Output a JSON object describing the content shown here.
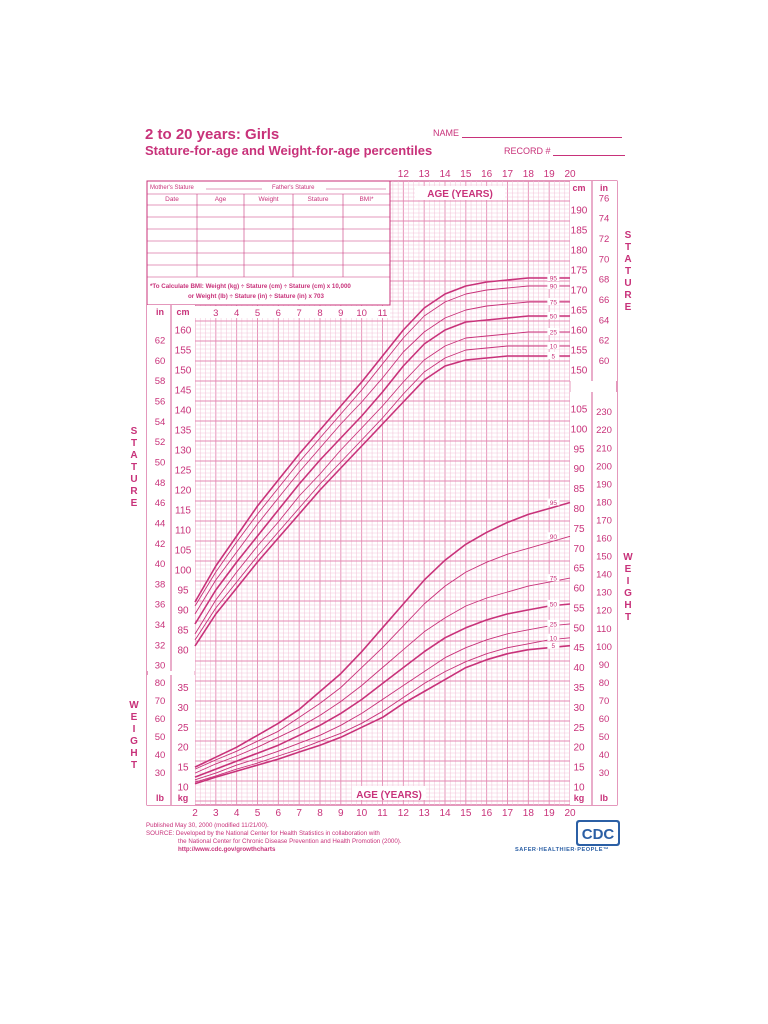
{
  "header": {
    "title": "2 to 20 years: Girls",
    "subtitle": "Stature-for-age and Weight-for-age percentiles",
    "name_label": "NAME",
    "record_label": "RECORD #"
  },
  "record_table": {
    "mother_label": "Mother's Stature",
    "father_label": "Father's Stature",
    "columns": [
      "Date",
      "Age",
      "Weight",
      "Stature",
      "BMI*"
    ],
    "rows": 6,
    "bmi_note_1": "*To Calculate BMI: Weight (kg) ÷ Stature (cm) ÷ Stature (cm) x 10,000",
    "bmi_note_2": "or Weight (lb) ÷ Stature (in) ÷ Stature (in) x 703"
  },
  "footer": {
    "published": "Published May 30, 2000 (modified 11/21/00).",
    "source_1": "SOURCE: Developed by the National Center for Health Statistics in collaboration with",
    "source_2": "the National Center for Chronic Disease Prevention and Health Promotion (2000).",
    "url": "http://www.cdc.gov/growthcharts",
    "logo_text": "CDC",
    "tagline": "SAFER·HEALTHIER·PEOPLE™"
  },
  "colors": {
    "ink": "#c8327a",
    "grid": "#e48ab3",
    "grid_minor": "#f2bfd6",
    "logo_blue": "#2b5fa5"
  },
  "chart_data": {
    "type": "line",
    "axis_title": "AGE (YEARS)",
    "side_label_stature": "STATURE",
    "side_label_weight": "WEIGHT",
    "x_ticks_bottom": [
      2,
      3,
      4,
      5,
      6,
      7,
      8,
      9,
      10,
      11,
      12,
      13,
      14,
      15,
      16,
      17,
      18,
      19,
      20
    ],
    "x_ticks_top": [
      12,
      13,
      14,
      15,
      16,
      17,
      18,
      19,
      20
    ],
    "x_ticks_inner": [
      3,
      4,
      5,
      6,
      7,
      8,
      9,
      10,
      11
    ],
    "xlim": [
      2,
      20
    ],
    "units": {
      "cm": "cm",
      "in": "in",
      "kg": "kg",
      "lb": "lb"
    },
    "stature": {
      "ylim_cm": [
        77,
        177
      ],
      "left_cm_ticks": [
        80,
        85,
        90,
        95,
        100,
        105,
        110,
        115,
        120,
        125,
        130,
        135,
        140,
        145,
        150,
        155,
        160
      ],
      "left_in_ticks": [
        30,
        32,
        34,
        36,
        38,
        40,
        42,
        44,
        46,
        48,
        50,
        52,
        54,
        56,
        58,
        60,
        62
      ],
      "right_cm_ticks": [
        150,
        155,
        160,
        165,
        170,
        175,
        180,
        185,
        190
      ],
      "right_in_ticks": [
        60,
        62,
        64,
        66,
        68,
        70,
        72,
        74,
        76
      ],
      "ages": [
        2,
        3,
        4,
        5,
        6,
        7,
        8,
        9,
        10,
        11,
        12,
        13,
        14,
        15,
        16,
        17,
        18,
        19,
        20
      ],
      "series": [
        {
          "name": "95",
          "values": [
            92,
            101,
            108.5,
            116,
            122.5,
            129,
            135,
            141,
            147,
            153.5,
            160,
            165.5,
            169,
            171,
            172,
            172.5,
            173,
            173,
            173
          ]
        },
        {
          "name": "90",
          "values": [
            91,
            99.5,
            107,
            114,
            120.5,
            127,
            133,
            139,
            145,
            151.5,
            158,
            163.5,
            167,
            169,
            170,
            170.5,
            171,
            171,
            171
          ]
        },
        {
          "name": "75",
          "values": [
            89,
            97.5,
            104.5,
            111.5,
            118,
            124.5,
            130.5,
            136.5,
            142,
            148,
            154.5,
            159.5,
            163,
            165,
            166,
            166.5,
            167,
            167,
            167
          ]
        },
        {
          "name": "50",
          "values": [
            86.5,
            95,
            102,
            108.5,
            115,
            121.5,
            127.5,
            133,
            138.5,
            144.5,
            151,
            156.5,
            160,
            162,
            162.5,
            163,
            163.5,
            163.5,
            163.5
          ]
        },
        {
          "name": "25",
          "values": [
            84,
            92.5,
            99.5,
            106,
            112,
            118.5,
            124,
            130,
            135.5,
            141,
            147,
            152.5,
            156,
            158,
            158.5,
            159,
            159.5,
            159.5,
            159.5
          ]
        },
        {
          "name": "10",
          "values": [
            82.5,
            90.5,
            97,
            103.5,
            109.5,
            115.5,
            121.5,
            127,
            132.5,
            138,
            144,
            149.5,
            153,
            155,
            155.5,
            156,
            156,
            156,
            156
          ]
        },
        {
          "name": "5",
          "values": [
            81,
            89,
            95.5,
            102,
            108,
            114,
            120,
            125.5,
            131,
            136.5,
            142,
            147.5,
            151,
            152.5,
            153,
            153.5,
            153.5,
            153.5,
            153.5
          ]
        }
      ]
    },
    "weight": {
      "ylim_kg": [
        9,
        85
      ],
      "left_kg_ticks": [
        10,
        15,
        20,
        25,
        30,
        35
      ],
      "left_lb_ticks": [
        30,
        40,
        50,
        60,
        70,
        80
      ],
      "right_kg_ticks": [
        10,
        15,
        20,
        25,
        30,
        35,
        40,
        45,
        50,
        55,
        60,
        65,
        70,
        75,
        80,
        85,
        90,
        95,
        100,
        105
      ],
      "right_lb_ticks": [
        30,
        40,
        50,
        60,
        70,
        80,
        90,
        100,
        110,
        120,
        130,
        140,
        150,
        160,
        170,
        180,
        190,
        200,
        210,
        220,
        230
      ],
      "ages": [
        2,
        3,
        4,
        5,
        6,
        7,
        8,
        9,
        10,
        11,
        12,
        13,
        14,
        15,
        16,
        17,
        18,
        19,
        20
      ],
      "series": [
        {
          "name": "95",
          "values": [
            15,
            17.5,
            20,
            23,
            26,
            29.5,
            34,
            38.5,
            44,
            50,
            56,
            62,
            67,
            71,
            74,
            76.5,
            78.5,
            80,
            81.5
          ]
        },
        {
          "name": "90",
          "values": [
            14.5,
            16.8,
            19,
            21.5,
            24,
            27.5,
            31,
            35,
            40,
            45,
            50.5,
            56,
            60.5,
            64,
            66.5,
            68.5,
            70,
            71.5,
            73
          ]
        },
        {
          "name": "75",
          "values": [
            13.5,
            15.8,
            17.8,
            20,
            22.5,
            25,
            28,
            31.5,
            35.5,
            40,
            44.5,
            49,
            52.5,
            55.5,
            57.5,
            59,
            60.5,
            61.5,
            62.5
          ]
        },
        {
          "name": "50",
          "values": [
            12.5,
            14.5,
            16.5,
            18.5,
            20.5,
            23,
            25.5,
            28.5,
            32,
            36,
            40,
            44,
            47.5,
            50,
            52,
            53.5,
            54.5,
            55.5,
            56
          ]
        },
        {
          "name": "25",
          "values": [
            11.8,
            13.5,
            15.5,
            17.2,
            19,
            21,
            23,
            25.5,
            28.5,
            32,
            35.5,
            39,
            42.5,
            45,
            47,
            48.5,
            49.5,
            50.5,
            51
          ]
        },
        {
          "name": "10",
          "values": [
            11.2,
            12.8,
            14.5,
            16,
            17.8,
            19.5,
            21.5,
            23.5,
            26,
            29,
            32.5,
            36,
            39,
            41.5,
            43.5,
            45,
            46,
            47,
            47.5
          ]
        },
        {
          "name": "5",
          "values": [
            10.8,
            12.5,
            14,
            15.5,
            17,
            18.8,
            20.5,
            22.5,
            25,
            27.5,
            31,
            34,
            37,
            40,
            42,
            43.5,
            44.5,
            45,
            45.5
          ]
        }
      ]
    }
  }
}
